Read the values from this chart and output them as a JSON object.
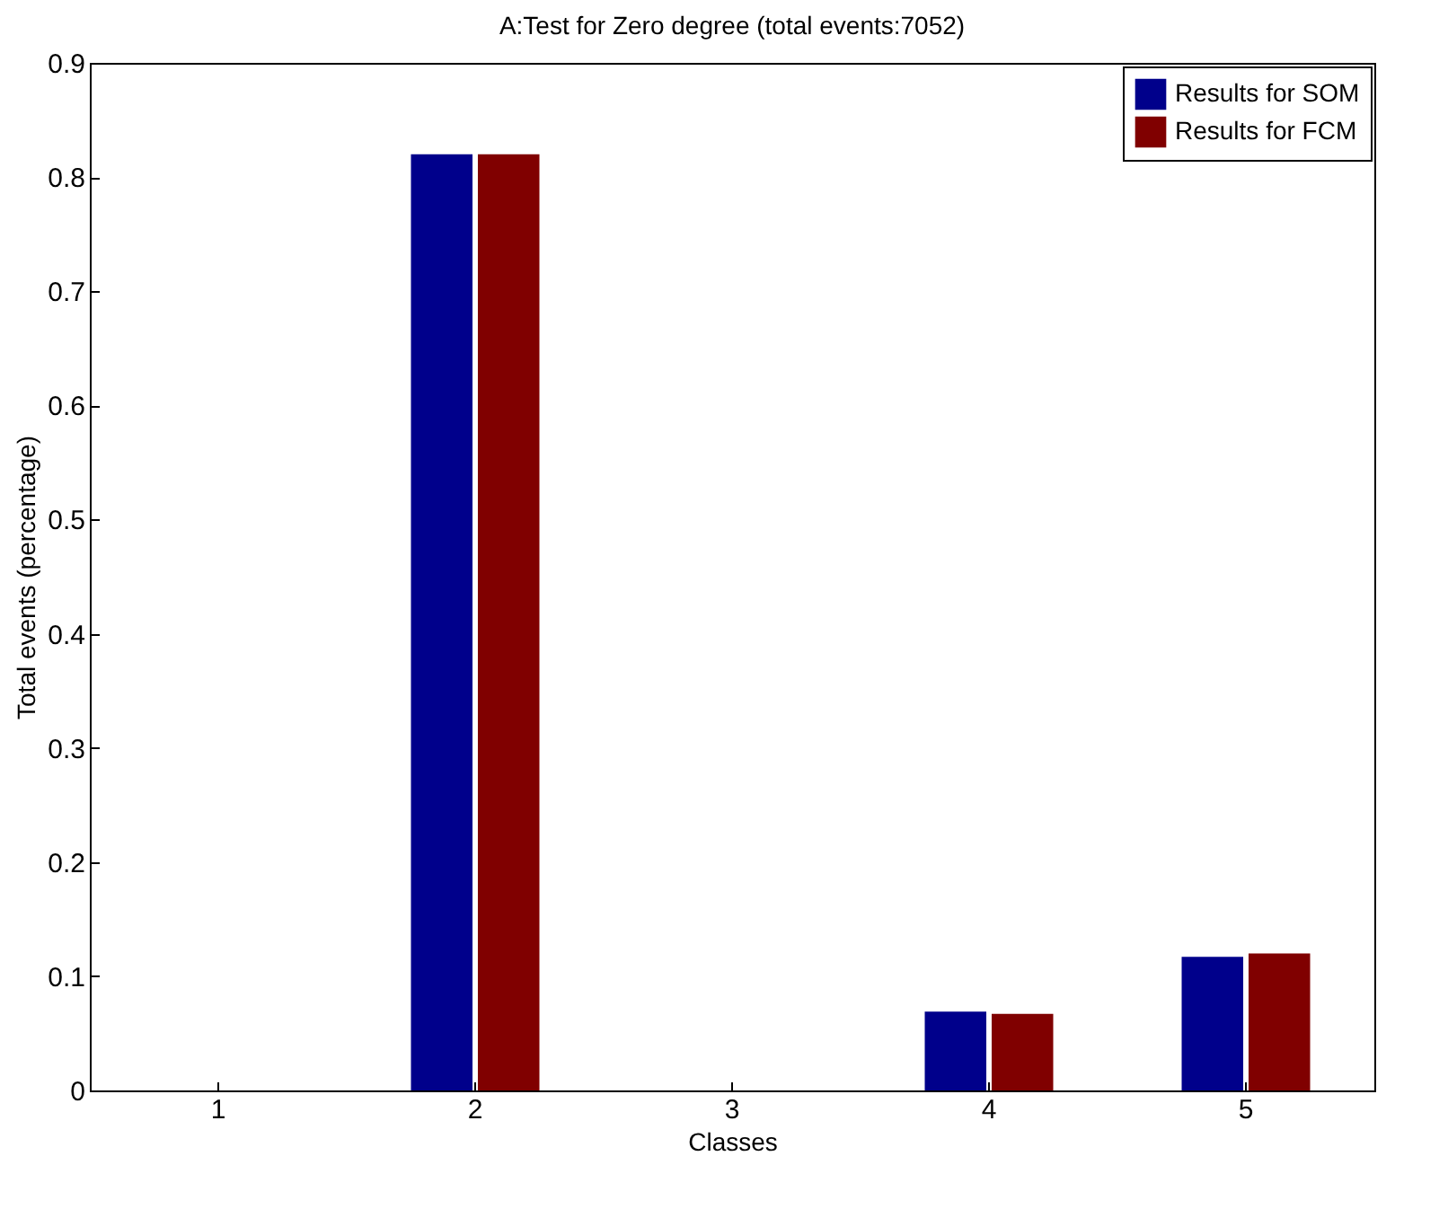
{
  "chart_data": {
    "type": "bar",
    "title": "A:Test for Zero degree (total events:7052)",
    "xlabel": "Classes",
    "ylabel": "Total events (percentage)",
    "categories": [
      "1",
      "2",
      "3",
      "4",
      "5"
    ],
    "series": [
      {
        "name": "Results for SOM",
        "color": "#00008b",
        "values": [
          0,
          0.82,
          0,
          0.069,
          0.117
        ]
      },
      {
        "name": "Results for FCM",
        "color": "#800000",
        "values": [
          0,
          0.82,
          0,
          0.067,
          0.12
        ]
      }
    ],
    "ylim": [
      0,
      0.9
    ],
    "yticks": [
      0,
      0.1,
      0.2,
      0.3,
      0.4,
      0.5,
      0.6,
      0.7,
      0.8,
      0.9
    ],
    "grid": false,
    "legend": "top right"
  }
}
